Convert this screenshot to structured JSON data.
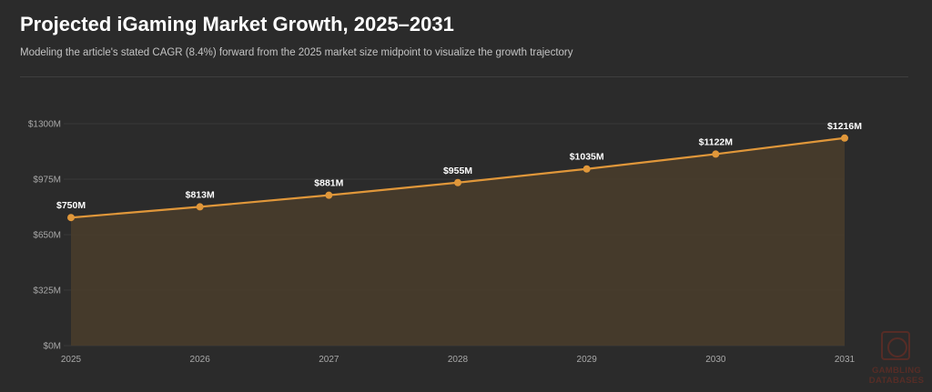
{
  "header": {
    "title": "Projected iGaming Market Growth, 2025–2031",
    "subtitle": "Modeling the article's stated CAGR (8.4%) forward from the 2025 market size midpoint to visualize the growth trajectory"
  },
  "watermark": {
    "line1": "GAMBLING",
    "line2": "DATABASES"
  },
  "colors": {
    "background": "#2b2b2b",
    "line": "#e0973a",
    "area": "#4a3d2c",
    "grid": "#383838",
    "tick_label": "#a8a8a8"
  },
  "chart_data": {
    "type": "line",
    "x": [
      "2025",
      "2026",
      "2027",
      "2028",
      "2029",
      "2030",
      "2031"
    ],
    "series": [
      {
        "values": [
          750,
          813,
          881,
          955,
          1035,
          1122,
          1216
        ],
        "labels": [
          "$750M",
          "$813M",
          "$881M",
          "$955M",
          "$1035M",
          "$1122M",
          "$1216M"
        ]
      }
    ],
    "ylim": [
      0,
      1300
    ],
    "yticks": [
      0,
      325,
      650,
      975,
      1300
    ],
    "ytick_labels": [
      "$0M",
      "$325M",
      "$650M",
      "$975M",
      "$1300M"
    ],
    "grid": true,
    "legend": "none",
    "area_fill": true
  }
}
